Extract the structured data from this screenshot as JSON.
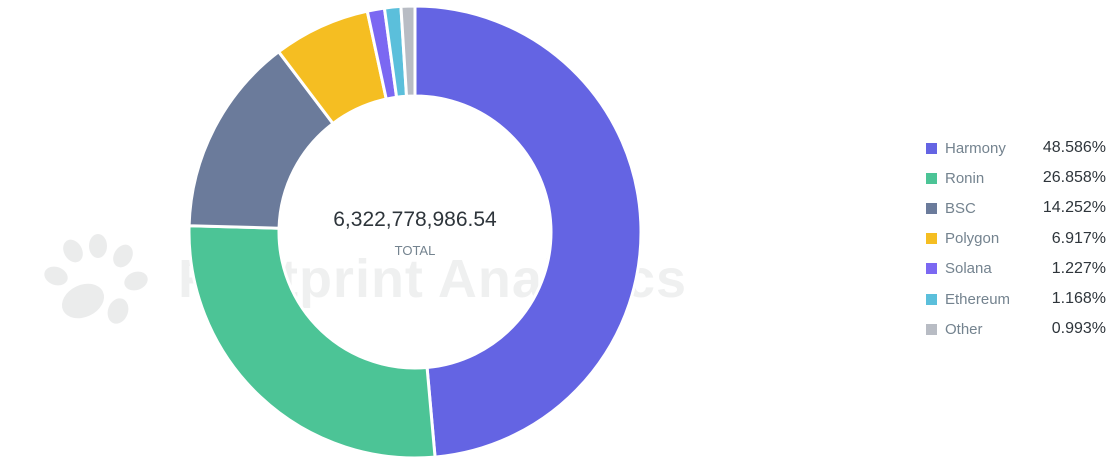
{
  "chart_data": {
    "type": "pie",
    "donut": true,
    "center": {
      "value": "6,322,778,986.54",
      "label": "TOTAL"
    },
    "legend_position": "right",
    "slices": [
      {
        "name": "Harmony",
        "value": 48.586,
        "label": "48.586%",
        "color": "#6464e3"
      },
      {
        "name": "Ronin",
        "value": 26.858,
        "label": "26.858%",
        "color": "#4cc496"
      },
      {
        "name": "BSC",
        "value": 14.252,
        "label": "14.252%",
        "color": "#6b7b9b"
      },
      {
        "name": "Polygon",
        "value": 6.917,
        "label": "6.917%",
        "color": "#f5be22"
      },
      {
        "name": "Solana",
        "value": 1.227,
        "label": "1.227%",
        "color": "#7b68f2"
      },
      {
        "name": "Ethereum",
        "value": 1.168,
        "label": "1.168%",
        "color": "#5bbfdb"
      },
      {
        "name": "Other",
        "value": 0.993,
        "label": "0.993%",
        "color": "#b8bcc4"
      }
    ]
  },
  "watermark": {
    "text": "Footprint Analytics",
    "icon": "footprint-logo-icon"
  }
}
